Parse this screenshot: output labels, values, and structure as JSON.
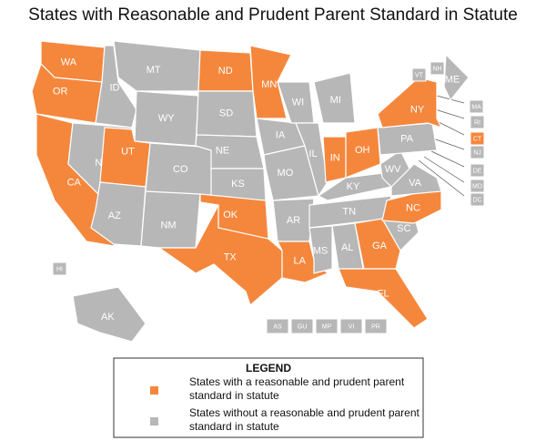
{
  "title": "States with Reasonable and Prudent Parent Standard in Statute",
  "states": [
    {
      "label": "WA",
      "standard": true
    },
    {
      "label": "OR",
      "standard": true
    },
    {
      "label": "CA",
      "standard": true
    },
    {
      "label": "ID",
      "standard": false
    },
    {
      "label": "NV",
      "standard": false
    },
    {
      "label": "MT",
      "standard": false
    },
    {
      "label": "WY",
      "standard": false
    },
    {
      "label": "UT",
      "standard": true
    },
    {
      "label": "AZ",
      "standard": false
    },
    {
      "label": "CO",
      "standard": false
    },
    {
      "label": "NM",
      "standard": false
    },
    {
      "label": "ND",
      "standard": true
    },
    {
      "label": "SD",
      "standard": false
    },
    {
      "label": "NE",
      "standard": false
    },
    {
      "label": "KS",
      "standard": false
    },
    {
      "label": "OK",
      "standard": true
    },
    {
      "label": "TX",
      "standard": true
    },
    {
      "label": "MN",
      "standard": true
    },
    {
      "label": "IA",
      "standard": false
    },
    {
      "label": "MO",
      "standard": false
    },
    {
      "label": "AR",
      "standard": false
    },
    {
      "label": "LA",
      "standard": true
    },
    {
      "label": "WI",
      "standard": false
    },
    {
      "label": "IL",
      "standard": false
    },
    {
      "label": "MI",
      "standard": false
    },
    {
      "label": "IN",
      "standard": true
    },
    {
      "label": "OH",
      "standard": true
    },
    {
      "label": "KY",
      "standard": false
    },
    {
      "label": "TN",
      "standard": false
    },
    {
      "label": "MS",
      "standard": false
    },
    {
      "label": "AL",
      "standard": false
    },
    {
      "label": "GA",
      "standard": true
    },
    {
      "label": "FL",
      "standard": true
    },
    {
      "label": "SC",
      "standard": false
    },
    {
      "label": "NC",
      "standard": true
    },
    {
      "label": "VA",
      "standard": false
    },
    {
      "label": "WV",
      "standard": false
    },
    {
      "label": "PA",
      "standard": false
    },
    {
      "label": "NY",
      "standard": true
    },
    {
      "label": "ME",
      "standard": false
    },
    {
      "label": "AK",
      "standard": false
    },
    {
      "label": "HI",
      "standard": false
    },
    {
      "label": "VT",
      "standard": false
    },
    {
      "label": "NH",
      "standard": false
    },
    {
      "label": "MA",
      "standard": false
    },
    {
      "label": "RI",
      "standard": false
    },
    {
      "label": "CT",
      "standard": true
    },
    {
      "label": "NJ",
      "standard": false
    },
    {
      "label": "DE",
      "standard": false
    },
    {
      "label": "MD",
      "standard": false
    },
    {
      "label": "DC",
      "standard": false
    }
  ],
  "territories": [
    "AS",
    "GU",
    "MP",
    "VI",
    "PR"
  ],
  "legend": {
    "title": "LEGEND",
    "items": [
      {
        "label": "States with a reasonable and prudent parent standard in statute",
        "color": "#f5873c"
      },
      {
        "label": "States without a reasonable and prudent parent standard in statute",
        "color": "#b7b7b7"
      }
    ]
  }
}
